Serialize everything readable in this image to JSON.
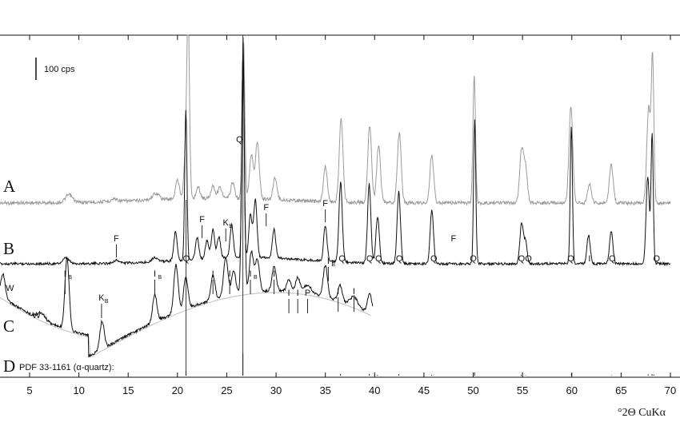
{
  "chart_data": {
    "type": "line",
    "xlabel": "°2Θ CuKα",
    "xlim": [
      2,
      70
    ],
    "x_ticks": [
      5,
      10,
      15,
      20,
      25,
      30,
      35,
      40,
      45,
      50,
      55,
      60,
      65,
      70
    ],
    "scale_bar_label": "100 cps",
    "grid": false,
    "colors": {
      "A": "#9a9a9a",
      "B": "#111111",
      "C": "#111111",
      "background_fit": "#c8c8c8",
      "axis": "#111111"
    },
    "series": [
      {
        "name": "A",
        "baseline": 0,
        "x_range": [
          2,
          70
        ],
        "peaks": [
          {
            "x": 9.0,
            "h": 12
          },
          {
            "x": 13.6,
            "h": 4
          },
          {
            "x": 17.8,
            "h": 10
          },
          {
            "x": 20.0,
            "h": 30
          },
          {
            "x": 20.9,
            "h": 100
          },
          {
            "x": 21.1,
            "h": 230
          },
          {
            "x": 22.1,
            "h": 18
          },
          {
            "x": 23.6,
            "h": 20
          },
          {
            "x": 24.3,
            "h": 18
          },
          {
            "x": 25.6,
            "h": 25
          },
          {
            "x": 26.7,
            "h": 250
          },
          {
            "x": 27.5,
            "h": 70
          },
          {
            "x": 28.1,
            "h": 90
          },
          {
            "x": 29.9,
            "h": 35
          },
          {
            "x": 35.0,
            "h": 55
          },
          {
            "x": 36.6,
            "h": 130
          },
          {
            "x": 39.5,
            "h": 120
          },
          {
            "x": 40.4,
            "h": 90
          },
          {
            "x": 42.5,
            "h": 110
          },
          {
            "x": 45.8,
            "h": 75
          },
          {
            "x": 50.1,
            "h": 200
          },
          {
            "x": 54.9,
            "h": 80
          },
          {
            "x": 55.3,
            "h": 55
          },
          {
            "x": 59.9,
            "h": 150
          },
          {
            "x": 61.8,
            "h": 30
          },
          {
            "x": 64.0,
            "h": 60
          },
          {
            "x": 67.8,
            "h": 150
          },
          {
            "x": 68.2,
            "h": 220
          }
        ]
      },
      {
        "name": "B",
        "baseline": 0,
        "x_range": [
          2,
          70
        ],
        "peaks": [
          {
            "x": 8.7,
            "h": 8
          },
          {
            "x": 13.8,
            "h": 4
          },
          {
            "x": 17.7,
            "h": 6
          },
          {
            "x": 19.8,
            "h": 40
          },
          {
            "x": 20.85,
            "h": 210
          },
          {
            "x": 22.0,
            "h": 30
          },
          {
            "x": 23.0,
            "h": 25
          },
          {
            "x": 23.6,
            "h": 40
          },
          {
            "x": 24.2,
            "h": 30
          },
          {
            "x": 25.5,
            "h": 45
          },
          {
            "x": 26.65,
            "h": 300
          },
          {
            "x": 27.4,
            "h": 60
          },
          {
            "x": 27.9,
            "h": 80
          },
          {
            "x": 29.8,
            "h": 40
          },
          {
            "x": 35.0,
            "h": 50
          },
          {
            "x": 36.55,
            "h": 110
          },
          {
            "x": 39.45,
            "h": 110
          },
          {
            "x": 40.3,
            "h": 65
          },
          {
            "x": 42.45,
            "h": 100
          },
          {
            "x": 45.8,
            "h": 75
          },
          {
            "x": 50.15,
            "h": 200
          },
          {
            "x": 54.9,
            "h": 55
          },
          {
            "x": 55.3,
            "h": 30
          },
          {
            "x": 59.95,
            "h": 190
          },
          {
            "x": 61.7,
            "h": 40
          },
          {
            "x": 64.0,
            "h": 45
          },
          {
            "x": 67.7,
            "h": 120
          },
          {
            "x": 68.15,
            "h": 180
          }
        ]
      },
      {
        "name": "C",
        "baseline": 0,
        "x_range": [
          2,
          39.8
        ],
        "peaks": [
          {
            "x": 2.3,
            "h": 30
          },
          {
            "x": 6.2,
            "h": 8
          },
          {
            "x": 8.8,
            "h": 90
          },
          {
            "x": 12.35,
            "h": 35
          },
          {
            "x": 17.7,
            "h": 35
          },
          {
            "x": 19.85,
            "h": 60
          },
          {
            "x": 20.85,
            "h": 40
          },
          {
            "x": 23.6,
            "h": 30
          },
          {
            "x": 24.9,
            "h": 50
          },
          {
            "x": 25.7,
            "h": 30
          },
          {
            "x": 26.65,
            "h": 300
          },
          {
            "x": 27.5,
            "h": 50
          },
          {
            "x": 28.1,
            "h": 40
          },
          {
            "x": 29.8,
            "h": 30
          },
          {
            "x": 31.3,
            "h": 15
          },
          {
            "x": 32.2,
            "h": 18
          },
          {
            "x": 33.2,
            "h": 10
          },
          {
            "x": 35.0,
            "h": 40
          },
          {
            "x": 36.5,
            "h": 20
          },
          {
            "x": 37.9,
            "h": 12
          },
          {
            "x": 39.5,
            "h": 25
          }
        ]
      },
      {
        "name": "D",
        "label": "PDF 33-1161 (α-quartz):",
        "sticks": [
          {
            "x": 20.86,
            "h": 22
          },
          {
            "x": 26.64,
            "h": 100
          },
          {
            "x": 36.54,
            "h": 8
          },
          {
            "x": 39.46,
            "h": 8
          },
          {
            "x": 40.29,
            "h": 4
          },
          {
            "x": 42.45,
            "h": 6
          },
          {
            "x": 45.79,
            "h": 4
          },
          {
            "x": 50.14,
            "h": 14
          },
          {
            "x": 54.87,
            "h": 4
          },
          {
            "x": 55.32,
            "h": 2
          },
          {
            "x": 59.96,
            "h": 9
          },
          {
            "x": 64.03,
            "h": 2
          },
          {
            "x": 67.74,
            "h": 6
          },
          {
            "x": 68.14,
            "h": 7
          },
          {
            "x": 68.31,
            "h": 5
          }
        ]
      }
    ],
    "annotations": {
      "B": [
        {
          "text": "F",
          "x": 13.8
        },
        {
          "text": "F",
          "x": 22.5
        },
        {
          "text": "K",
          "sub": "B",
          "x": 24.9
        },
        {
          "text": "F",
          "x": 29.0
        },
        {
          "text": "F",
          "x": 35.0
        },
        {
          "text": "F",
          "x": 48.0
        },
        {
          "text": "Q",
          "x": 20.9
        },
        {
          "text": "Q",
          "x": 36.7
        },
        {
          "text": "Q",
          "x": 39.5
        },
        {
          "text": "Q",
          "x": 40.4
        },
        {
          "text": "Q",
          "x": 42.5
        },
        {
          "text": "Q",
          "x": 46.0
        },
        {
          "text": "Q",
          "x": 50.0
        },
        {
          "text": "Q",
          "x": 54.9
        },
        {
          "text": "Q",
          "x": 55.6
        },
        {
          "text": "Q",
          "x": 59.9
        },
        {
          "text": "I",
          "x": 61.8
        },
        {
          "text": "Q",
          "x": 64.1
        },
        {
          "text": "Q",
          "x": 68.6
        },
        {
          "text": "Q",
          "x": 26.3
        }
      ],
      "C": [
        {
          "text": "W",
          "x": 3.0
        },
        {
          "text": "W",
          "x": 5.7
        },
        {
          "text": "I",
          "sub": "B",
          "x": 8.6
        },
        {
          "text": "K",
          "sub": "B",
          "x": 12.3
        },
        {
          "text": "I",
          "sub": "B",
          "x": 17.7
        },
        {
          "text": "I",
          "x": 23.6
        },
        {
          "text": "I",
          "x": 25.3
        },
        {
          "text": "I",
          "sub": "B",
          "x": 27.4
        },
        {
          "text": "I",
          "x": 29.8
        },
        {
          "text": "I",
          "x": 31.3
        },
        {
          "text": "I",
          "x": 32.2
        },
        {
          "text": "P",
          "x": 33.2
        },
        {
          "text": "I",
          "sub": "B",
          "x": 35.3
        },
        {
          "text": "I",
          "x": 36.3
        },
        {
          "text": "I",
          "x": 37.9
        }
      ]
    }
  }
}
